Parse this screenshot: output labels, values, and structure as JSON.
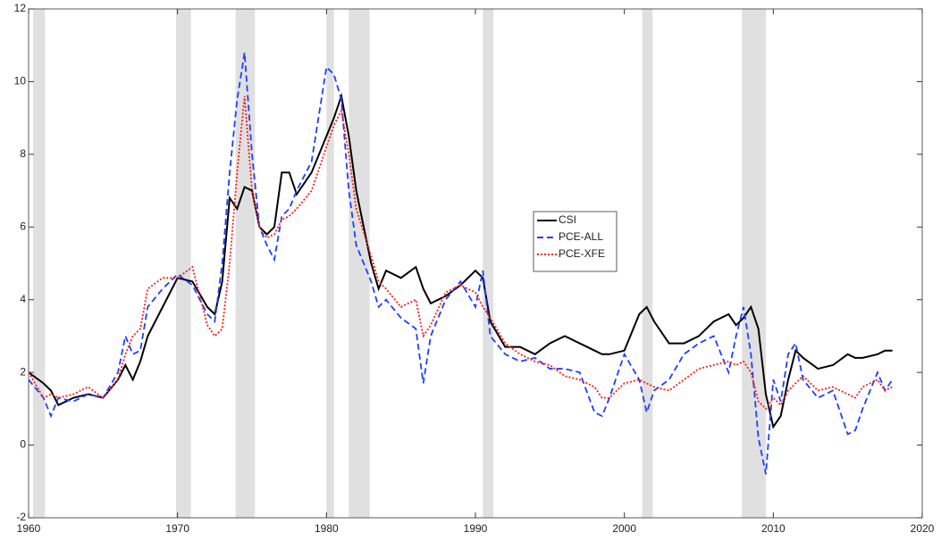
{
  "chart_data": {
    "type": "line",
    "x": [
      1960,
      1961,
      1961.5,
      1962,
      1963,
      1964,
      1965,
      1966,
      1966.5,
      1967,
      1967.5,
      1968,
      1969,
      1970,
      1971,
      1972,
      1972.5,
      1973,
      1973.5,
      1974,
      1974.5,
      1975,
      1975.5,
      1976,
      1976.5,
      1977,
      1977.5,
      1978,
      1979,
      1980,
      1980.5,
      1981,
      1981.5,
      1982,
      1983,
      1983.5,
      1984,
      1985,
      1986,
      1986.5,
      1987,
      1988,
      1989,
      1990,
      1990.5,
      1991,
      1992,
      1993,
      1994,
      1995,
      1996,
      1997,
      1998,
      1998.5,
      1999,
      2000,
      2001,
      2001.5,
      2002,
      2003,
      2004,
      2005,
      2006,
      2007,
      2007.5,
      2008,
      2008.5,
      2009,
      2009.5,
      2010,
      2010.5,
      2011,
      2011.5,
      2012,
      2013,
      2014,
      2015,
      2015.5,
      2016,
      2017,
      2017.5,
      2018
    ],
    "series": [
      {
        "name": "CSI",
        "color": "#000000",
        "style": "solid",
        "values": [
          2.0,
          1.7,
          1.5,
          1.1,
          1.3,
          1.4,
          1.3,
          1.8,
          2.2,
          1.8,
          2.3,
          3.0,
          3.8,
          4.6,
          4.5,
          3.8,
          3.6,
          4.5,
          6.8,
          6.5,
          7.1,
          7.0,
          6.0,
          5.8,
          6.0,
          7.5,
          7.5,
          6.9,
          7.5,
          8.5,
          9.0,
          9.6,
          8.5,
          7.0,
          5.0,
          4.3,
          4.8,
          4.6,
          4.9,
          4.3,
          3.9,
          4.1,
          4.4,
          4.8,
          4.6,
          3.4,
          2.7,
          2.7,
          2.5,
          2.8,
          3.0,
          2.8,
          2.6,
          2.5,
          2.5,
          2.6,
          3.6,
          3.8,
          3.4,
          2.8,
          2.8,
          3.0,
          3.4,
          3.6,
          3.3,
          3.5,
          3.8,
          3.2,
          1.4,
          0.5,
          0.8,
          1.8,
          2.6,
          2.4,
          2.1,
          2.2,
          2.5,
          2.4,
          2.4,
          2.5,
          2.6,
          2.6
        ]
      },
      {
        "name": "PCE-ALL",
        "color": "#1f3fff",
        "style": "dashed",
        "values": [
          1.8,
          1.3,
          0.8,
          1.3,
          1.2,
          1.4,
          1.3,
          2.0,
          3.0,
          2.5,
          2.6,
          3.8,
          4.3,
          4.7,
          4.4,
          3.6,
          3.4,
          5.0,
          7.5,
          9.5,
          10.8,
          8.0,
          6.0,
          5.5,
          5.1,
          6.3,
          6.5,
          7.0,
          7.8,
          10.4,
          10.2,
          9.5,
          7.0,
          5.5,
          4.5,
          3.8,
          4.0,
          3.5,
          3.2,
          1.7,
          3.0,
          4.0,
          4.5,
          3.8,
          4.8,
          3.0,
          2.5,
          2.3,
          2.4,
          2.1,
          2.1,
          2.0,
          0.9,
          0.8,
          1.3,
          2.5,
          1.8,
          0.9,
          1.5,
          1.8,
          2.5,
          2.8,
          3.0,
          2.0,
          3.0,
          3.8,
          2.5,
          0.2,
          -0.8,
          1.8,
          1.2,
          2.5,
          2.8,
          1.8,
          1.3,
          1.5,
          0.3,
          0.4,
          1.0,
          2.0,
          1.5,
          1.8
        ]
      },
      {
        "name": "PCE-XFE",
        "color": "#ff1a1a",
        "style": "dotted",
        "values": [
          2.0,
          1.3,
          1.4,
          1.3,
          1.4,
          1.6,
          1.3,
          1.8,
          2.5,
          3.0,
          3.2,
          4.3,
          4.6,
          4.6,
          4.9,
          3.3,
          3.0,
          3.2,
          5.0,
          7.5,
          9.6,
          7.0,
          6.0,
          5.7,
          5.8,
          6.2,
          6.3,
          6.5,
          7.0,
          8.2,
          8.8,
          9.2,
          8.0,
          6.5,
          5.2,
          4.5,
          4.3,
          3.8,
          4.0,
          3.0,
          3.3,
          4.2,
          4.4,
          4.2,
          3.8,
          3.5,
          2.8,
          2.5,
          2.3,
          2.2,
          1.9,
          1.8,
          1.6,
          1.3,
          1.3,
          1.7,
          1.8,
          1.7,
          1.6,
          1.5,
          1.8,
          2.1,
          2.2,
          2.3,
          2.2,
          2.3,
          2.0,
          1.2,
          1.0,
          1.3,
          1.1,
          1.5,
          1.7,
          1.9,
          1.5,
          1.6,
          1.4,
          1.3,
          1.6,
          1.8,
          1.5,
          1.6
        ]
      }
    ],
    "shaded_periods": [
      [
        1960.3,
        1961.1
      ],
      [
        1969.9,
        1970.9
      ],
      [
        1973.9,
        1975.2
      ],
      [
        1980.0,
        1980.5
      ],
      [
        1981.5,
        1982.9
      ],
      [
        1990.5,
        1991.2
      ],
      [
        2001.2,
        2001.9
      ],
      [
        2007.9,
        2009.5
      ]
    ],
    "shade_color": "#e0e0e0",
    "xlim": [
      1960,
      2020
    ],
    "xticks": [
      1960,
      1970,
      1980,
      1990,
      2000,
      2010,
      2020
    ],
    "ylim": [
      -2,
      12
    ],
    "yticks": [
      -2,
      0,
      2,
      4,
      6,
      8,
      10,
      12
    ],
    "grid": false,
    "legend": "center"
  }
}
